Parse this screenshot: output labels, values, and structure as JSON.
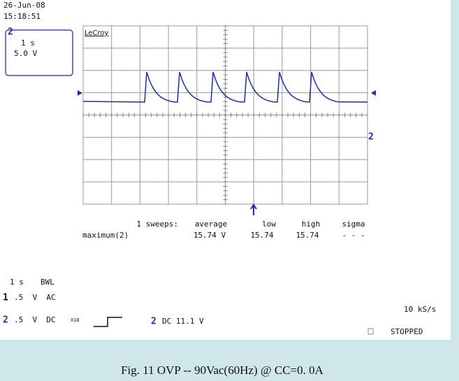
{
  "header": {
    "date": "26-Jun-08",
    "time": "15:18:51"
  },
  "channel_box": {
    "channel": "2",
    "timebase": "1 s",
    "scale": "5.0 V"
  },
  "brand": "LeCroy",
  "trace_marker": "2",
  "measurements": {
    "sweeps": "1 sweeps:",
    "headers": [
      "average",
      "low",
      "high",
      "sigma"
    ],
    "row_label": "maximum(2)",
    "values": [
      "15.74 V",
      "15.74",
      "15.74",
      "- - -"
    ]
  },
  "settings": {
    "timebase": "1 s",
    "bwl": "BWL",
    "ch1_num": "1",
    "ch1": ".5  V  AC",
    "ch2_num": "2",
    "ch2": ".5  V  DC",
    "ch2_probe": "X10",
    "trigger_ch": "2",
    "trigger": "DC 11.1 V",
    "sample_rate": "10 kS/s",
    "status": "STOPPED"
  },
  "caption": "Fig. 11  OVP  --  90Vac(60Hz) @ CC=0. 0A"
}
